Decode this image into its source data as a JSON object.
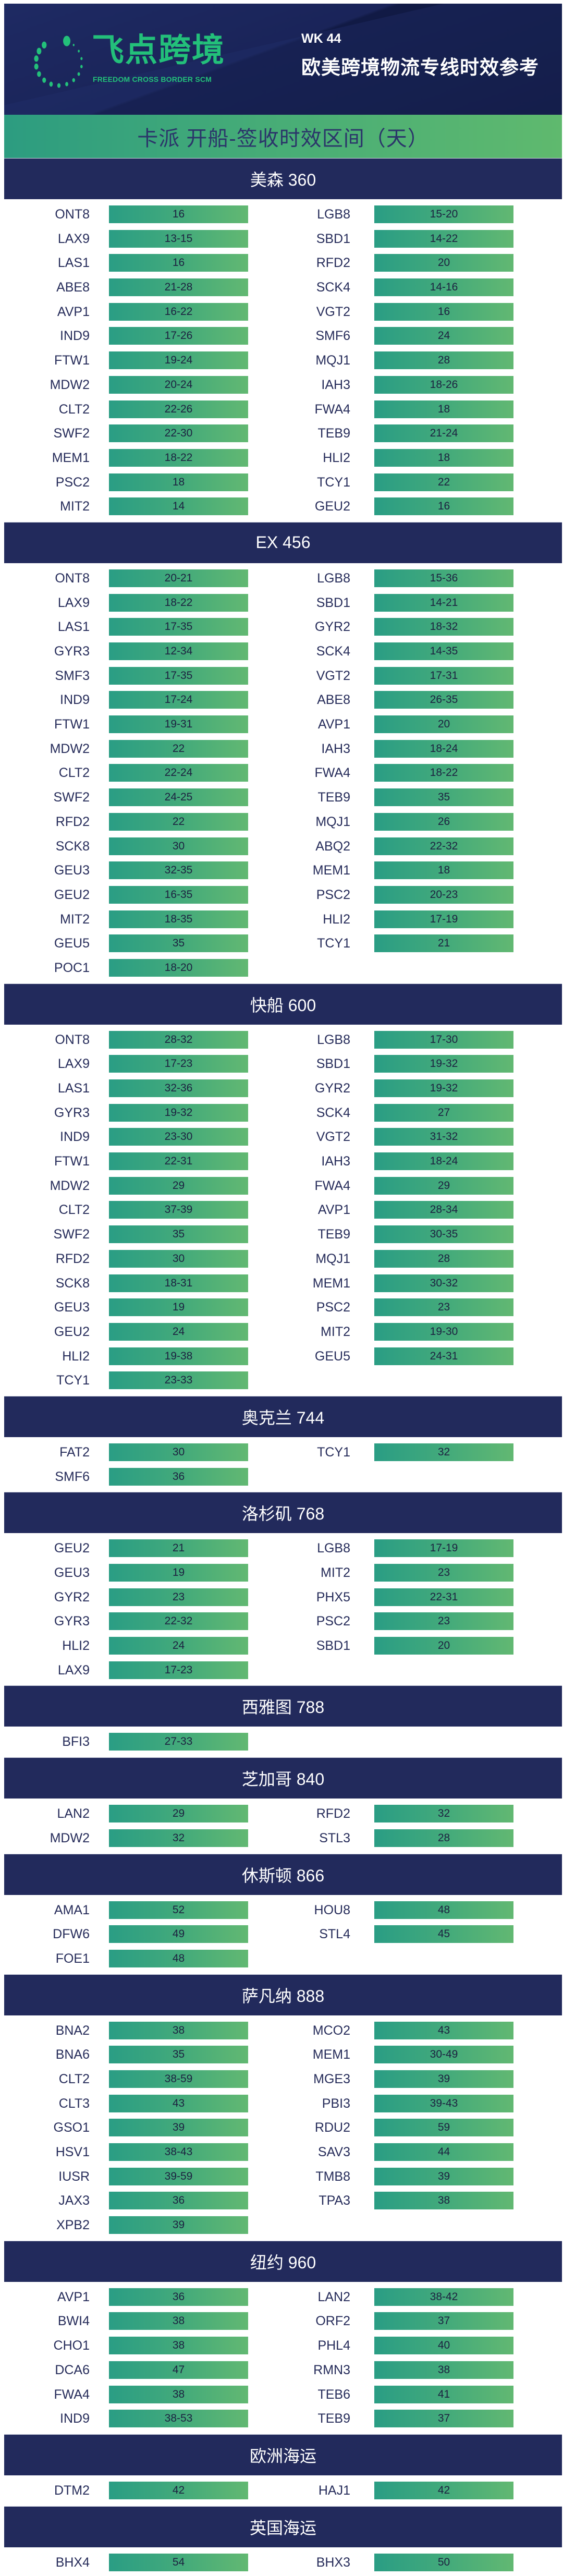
{
  "header": {
    "logo_text": "飞点跨境",
    "logo_subtext": "FREEDOM CROSS BORDER SCM",
    "week": "WK 44",
    "title": "欧美跨境物流专线时效参考",
    "brand_color": "#23c07a"
  },
  "banner": {
    "title": "卡派 开船-签收时效区间（天）"
  },
  "colors": {
    "navy": "#222a5c",
    "bar_start": "#2a9d84",
    "bar_end": "#62b872"
  },
  "sections": [
    {
      "title": "美森 360",
      "rows": [
        [
          "ONT8",
          "16",
          "LGB8",
          "15-20"
        ],
        [
          "LAX9",
          "13-15",
          "SBD1",
          "14-22"
        ],
        [
          "LAS1",
          "16",
          "RFD2",
          "20"
        ],
        [
          "ABE8",
          "21-28",
          "SCK4",
          "14-16"
        ],
        [
          "AVP1",
          "16-22",
          "VGT2",
          "16"
        ],
        [
          "IND9",
          "17-26",
          "SMF6",
          "24"
        ],
        [
          "FTW1",
          "19-24",
          "MQJ1",
          "28"
        ],
        [
          "MDW2",
          "20-24",
          "IAH3",
          "18-26"
        ],
        [
          "CLT2",
          "22-26",
          "FWA4",
          "18"
        ],
        [
          "SWF2",
          "22-30",
          "TEB9",
          "21-24"
        ],
        [
          "MEM1",
          "18-22",
          "HLI2",
          "18"
        ],
        [
          "PSC2",
          "18",
          "TCY1",
          "22"
        ],
        [
          "MIT2",
          "14",
          "GEU2",
          "16"
        ]
      ]
    },
    {
      "title": "EX 456",
      "rows": [
        [
          "ONT8",
          "20-21",
          "LGB8",
          "15-36"
        ],
        [
          "LAX9",
          "18-22",
          "SBD1",
          "14-21"
        ],
        [
          "LAS1",
          "17-35",
          "GYR2",
          "18-32"
        ],
        [
          "GYR3",
          "12-34",
          "SCK4",
          "14-35"
        ],
        [
          "SMF3",
          "17-35",
          "VGT2",
          "17-31"
        ],
        [
          "IND9",
          "17-24",
          "ABE8",
          "26-35"
        ],
        [
          "FTW1",
          "19-31",
          "AVP1",
          "20"
        ],
        [
          "MDW2",
          "22",
          "IAH3",
          "18-24"
        ],
        [
          "CLT2",
          "22-24",
          "FWA4",
          "18-22"
        ],
        [
          "SWF2",
          "24-25",
          "TEB9",
          "35"
        ],
        [
          "RFD2",
          "22",
          "MQJ1",
          "26"
        ],
        [
          "SCK8",
          "30",
          "ABQ2",
          "22-32"
        ],
        [
          "GEU3",
          "32-35",
          "MEM1",
          "18"
        ],
        [
          "GEU2",
          "16-35",
          "PSC2",
          "20-23"
        ],
        [
          "MIT2",
          "18-35",
          "HLI2",
          "17-19"
        ],
        [
          "GEU5",
          "35",
          "TCY1",
          "21"
        ],
        [
          "POC1",
          "18-20"
        ]
      ]
    },
    {
      "title": "快船 600",
      "rows": [
        [
          "ONT8",
          "28-32",
          "LGB8",
          "17-30"
        ],
        [
          "LAX9",
          "17-23",
          "SBD1",
          "19-32"
        ],
        [
          "LAS1",
          "32-36",
          "GYR2",
          "19-32"
        ],
        [
          "GYR3",
          "19-32",
          "SCK4",
          "27"
        ],
        [
          "IND9",
          "23-30",
          "VGT2",
          "31-32"
        ],
        [
          "FTW1",
          "22-31",
          "IAH3",
          "18-24"
        ],
        [
          "MDW2",
          "29",
          "FWA4",
          "29"
        ],
        [
          "CLT2",
          "37-39",
          "AVP1",
          "28-34"
        ],
        [
          "SWF2",
          "35",
          "TEB9",
          "30-35"
        ],
        [
          "RFD2",
          "30",
          "MQJ1",
          "28"
        ],
        [
          "SCK8",
          "18-31",
          "MEM1",
          "30-32"
        ],
        [
          "GEU3",
          "19",
          "PSC2",
          "23"
        ],
        [
          "GEU2",
          "24",
          "MIT2",
          "19-30"
        ],
        [
          "HLI2",
          "19-38",
          "GEU5",
          "24-31"
        ],
        [
          "TCY1",
          "23-33"
        ]
      ]
    },
    {
      "title": "奥克兰 744",
      "rows": [
        [
          "FAT2",
          "30",
          "TCY1",
          "32"
        ],
        [
          "SMF6",
          "36"
        ]
      ]
    },
    {
      "title": "洛杉矶 768",
      "rows": [
        [
          "GEU2",
          "21",
          "LGB8",
          "17-19"
        ],
        [
          "GEU3",
          "19",
          "MIT2",
          "23"
        ],
        [
          "GYR2",
          "23",
          "PHX5",
          "22-31"
        ],
        [
          "GYR3",
          "22-32",
          "PSC2",
          "23"
        ],
        [
          "HLI2",
          "24",
          "SBD1",
          "20"
        ],
        [
          "LAX9",
          "17-23"
        ]
      ]
    },
    {
      "title": "西雅图 788",
      "rows": [
        [
          "BFI3",
          "27-33"
        ]
      ]
    },
    {
      "title": "芝加哥 840",
      "rows": [
        [
          "LAN2",
          "29",
          "RFD2",
          "32"
        ],
        [
          "MDW2",
          "32",
          "STL3",
          "28"
        ]
      ]
    },
    {
      "title": "休斯顿 866",
      "rows": [
        [
          "AMA1",
          "52",
          "HOU8",
          "48"
        ],
        [
          "DFW6",
          "49",
          "STL4",
          "45"
        ],
        [
          "FOE1",
          "48"
        ]
      ]
    },
    {
      "title": "萨凡纳 888",
      "rows": [
        [
          "BNA2",
          "38",
          "MCO2",
          "43"
        ],
        [
          "BNA6",
          "35",
          "MEM1",
          "30-49"
        ],
        [
          "CLT2",
          "38-59",
          "MGE3",
          "39"
        ],
        [
          "CLT3",
          "43",
          "PBI3",
          "39-43"
        ],
        [
          "GSO1",
          "39",
          "RDU2",
          "59"
        ],
        [
          "HSV1",
          "38-43",
          "SAV3",
          "44"
        ],
        [
          "IUSR",
          "39-59",
          "TMB8",
          "39"
        ],
        [
          "JAX3",
          "36",
          "TPA3",
          "38"
        ],
        [
          "XPB2",
          "39"
        ]
      ]
    },
    {
      "title": "纽约 960",
      "rows": [
        [
          "AVP1",
          "36",
          "LAN2",
          "38-42"
        ],
        [
          "BWI4",
          "38",
          "ORF2",
          "37"
        ],
        [
          "CHO1",
          "38",
          "PHL4",
          "40"
        ],
        [
          "DCA6",
          "47",
          "RMN3",
          "38"
        ],
        [
          "FWA4",
          "38",
          "TEB6",
          "41"
        ],
        [
          "IND9",
          "38-53",
          "TEB9",
          "37"
        ]
      ]
    },
    {
      "title": "欧洲海运",
      "rows": [
        [
          "DTM2",
          "42",
          "HAJ1",
          "42"
        ]
      ]
    },
    {
      "title": "英国海运",
      "rows": [
        [
          "BHX4",
          "54",
          "BHX3",
          "50"
        ]
      ]
    }
  ]
}
